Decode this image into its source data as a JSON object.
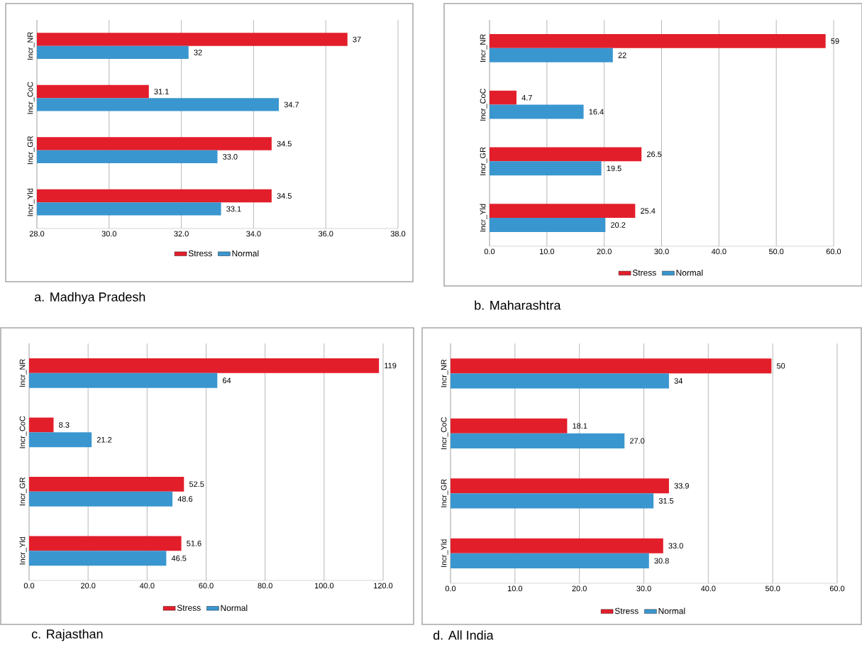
{
  "chart_data": [
    {
      "type": "bar",
      "orientation": "horizontal",
      "title": "a.   Madhya Pradesh",
      "categories": [
        "Incr_NR",
        "Incr_CoC",
        "Incr_GR",
        "Incr_Yld"
      ],
      "xlim": [
        28,
        38
      ],
      "xticks": [
        {
          "value": 28,
          "label": "28.0"
        },
        {
          "value": 30,
          "label": "30.0"
        },
        {
          "value": 32,
          "label": "32.0"
        },
        {
          "value": 34,
          "label": "34.0"
        },
        {
          "value": 36,
          "label": "36.0"
        },
        {
          "value": 38,
          "label": "38.0"
        }
      ],
      "grid": "x",
      "legend": "bottom",
      "series": [
        {
          "name": "Stress",
          "color": "#e31e2b",
          "values": [
            36.6,
            31.1,
            34.5,
            34.5
          ],
          "value_labels": [
            "37",
            "31.1",
            "34.5",
            "34.5"
          ]
        },
        {
          "name": "Normal",
          "color": "#3a96cf",
          "values": [
            32.2,
            34.7,
            33.0,
            33.1
          ],
          "value_labels": [
            "32",
            "34.7",
            "33.0",
            "33.1"
          ]
        }
      ]
    },
    {
      "type": "bar",
      "orientation": "horizontal",
      "title": "b.   Maharashtra",
      "categories": [
        "Incr_NR",
        "Incr_CoC",
        "Incr_GR",
        "Incr_Yld"
      ],
      "xlim": [
        0,
        60
      ],
      "xticks": [
        {
          "value": 0,
          "label": "0.0"
        },
        {
          "value": 10,
          "label": "10.0"
        },
        {
          "value": 20,
          "label": "20.0"
        },
        {
          "value": 30,
          "label": "30.0"
        },
        {
          "value": 40,
          "label": "40.0"
        },
        {
          "value": 50,
          "label": "50.0"
        },
        {
          "value": 60,
          "label": "60.0"
        }
      ],
      "grid": "x",
      "legend": "bottom",
      "series": [
        {
          "name": "Stress",
          "color": "#e31e2b",
          "values": [
            58.6,
            4.7,
            26.5,
            25.4
          ],
          "value_labels": [
            "59",
            "4.7",
            "26.5",
            "25.4"
          ]
        },
        {
          "name": "Normal",
          "color": "#3a96cf",
          "values": [
            21.5,
            16.4,
            19.5,
            20.2
          ],
          "value_labels": [
            "22",
            "16.4",
            "19.5",
            "20.2"
          ]
        }
      ]
    },
    {
      "type": "bar",
      "orientation": "horizontal",
      "title": "c.   Rajasthan",
      "categories": [
        "Incr_NR",
        "Incr_CoC",
        "Incr_GR",
        "Incr_Yld"
      ],
      "xlim": [
        0,
        120
      ],
      "xticks": [
        {
          "value": 0,
          "label": "0.0"
        },
        {
          "value": 20,
          "label": "20.0"
        },
        {
          "value": 40,
          "label": "40.0"
        },
        {
          "value": 60,
          "label": "60.0"
        },
        {
          "value": 80,
          "label": "80.0"
        },
        {
          "value": 100,
          "label": "100.0"
        },
        {
          "value": 120,
          "label": "120.0"
        }
      ],
      "grid": "x",
      "legend": "bottom",
      "series": [
        {
          "name": "Stress",
          "color": "#e31e2b",
          "values": [
            118.6,
            8.3,
            52.5,
            51.6
          ],
          "value_labels": [
            "119",
            "8.3",
            "52.5",
            "51.6"
          ]
        },
        {
          "name": "Normal",
          "color": "#3a96cf",
          "values": [
            63.8,
            21.2,
            48.6,
            46.5
          ],
          "value_labels": [
            "64",
            "21.2",
            "48.6",
            "46.5"
          ]
        }
      ]
    },
    {
      "type": "bar",
      "orientation": "horizontal",
      "title": "d.   All India",
      "categories": [
        "Incr_NR",
        "Incr_CoC",
        "Incr_GR",
        "Incr_Yld"
      ],
      "xlim": [
        0,
        60
      ],
      "xticks": [
        {
          "value": 0,
          "label": "0.0"
        },
        {
          "value": 10,
          "label": "10.0"
        },
        {
          "value": 20,
          "label": "20.0"
        },
        {
          "value": 30,
          "label": "30.0"
        },
        {
          "value": 40,
          "label": "40.0"
        },
        {
          "value": 50,
          "label": "50.0"
        },
        {
          "value": 60,
          "label": "60.0"
        }
      ],
      "grid": "x",
      "legend": "bottom",
      "series": [
        {
          "name": "Stress",
          "color": "#e31e2b",
          "values": [
            49.8,
            18.1,
            33.9,
            33.0
          ],
          "value_labels": [
            "50",
            "18.1",
            "33.9",
            "33.0"
          ]
        },
        {
          "name": "Normal",
          "color": "#3a96cf",
          "values": [
            33.9,
            27.0,
            31.5,
            30.8
          ],
          "value_labels": [
            "34",
            "27.0",
            "31.5",
            "30.8"
          ]
        }
      ]
    }
  ]
}
